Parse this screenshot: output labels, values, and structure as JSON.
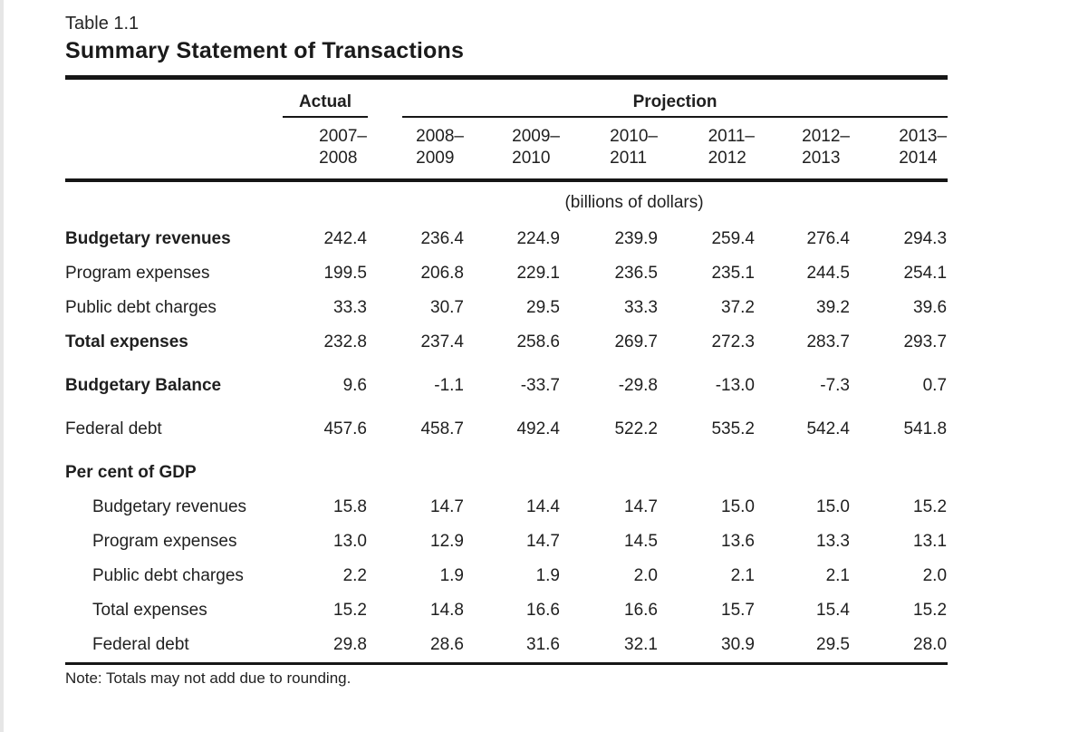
{
  "page": {
    "table_number": "Table 1.1",
    "title": "Summary Statement of Transactions",
    "units_note": "(billions of dollars)",
    "footnote": "Note: Totals may not add due to rounding."
  },
  "header": {
    "actual_label": "Actual",
    "projection_label": "Projection",
    "year_columns": [
      {
        "line1": "2007–",
        "line2": "2008",
        "group": "actual"
      },
      {
        "line1": "2008–",
        "line2": "2009",
        "group": "projection"
      },
      {
        "line1": "2009–",
        "line2": "2010",
        "group": "projection"
      },
      {
        "line1": "2010–",
        "line2": "2011",
        "group": "projection"
      },
      {
        "line1": "2011–",
        "line2": "2012",
        "group": "projection"
      },
      {
        "line1": "2012–",
        "line2": "2013",
        "group": "projection"
      },
      {
        "line1": "2013–",
        "line2": "2014",
        "group": "projection"
      }
    ]
  },
  "table": {
    "rows": [
      {
        "label": "Budgetary revenues",
        "style": "bold",
        "values": [
          "242.4",
          "236.4",
          "224.9",
          "239.9",
          "259.4",
          "276.4",
          "294.3"
        ]
      },
      {
        "label": "Program expenses",
        "style": "normal",
        "values": [
          "199.5",
          "206.8",
          "229.1",
          "236.5",
          "235.1",
          "244.5",
          "254.1"
        ]
      },
      {
        "label": "Public debt charges",
        "style": "normal",
        "values": [
          "33.3",
          "30.7",
          "29.5",
          "33.3",
          "37.2",
          "39.2",
          "39.6"
        ]
      },
      {
        "label": "Total expenses",
        "style": "bold",
        "values": [
          "232.8",
          "237.4",
          "258.6",
          "269.7",
          "272.3",
          "283.7",
          "293.7"
        ]
      },
      {
        "label": "Budgetary Balance",
        "style": "bold",
        "space_before": true,
        "values": [
          "9.6",
          "-1.1",
          "-33.7",
          "-29.8",
          "-13.0",
          "-7.3",
          "0.7"
        ]
      },
      {
        "label": "Federal debt",
        "style": "normal",
        "space_before": true,
        "values": [
          "457.6",
          "458.7",
          "492.4",
          "522.2",
          "535.2",
          "542.4",
          "541.8"
        ]
      },
      {
        "label": "Per cent of GDP",
        "style": "bold",
        "space_before": true,
        "section": true,
        "values": [
          "",
          "",
          "",
          "",
          "",
          "",
          ""
        ]
      },
      {
        "label": "Budgetary revenues",
        "style": "indent",
        "values": [
          "15.8",
          "14.7",
          "14.4",
          "14.7",
          "15.0",
          "15.0",
          "15.2"
        ]
      },
      {
        "label": "Program expenses",
        "style": "indent",
        "values": [
          "13.0",
          "12.9",
          "14.7",
          "14.5",
          "13.6",
          "13.3",
          "13.1"
        ]
      },
      {
        "label": "Public debt charges",
        "style": "indent",
        "values": [
          "2.2",
          "1.9",
          "1.9",
          "2.0",
          "2.1",
          "2.1",
          "2.0"
        ]
      },
      {
        "label": "Total expenses",
        "style": "indent",
        "values": [
          "15.2",
          "14.8",
          "16.6",
          "16.6",
          "15.7",
          "15.4",
          "15.2"
        ]
      },
      {
        "label": "Federal debt",
        "style": "indent",
        "values": [
          "29.8",
          "28.6",
          "31.6",
          "32.1",
          "30.9",
          "29.5",
          "28.0"
        ]
      }
    ]
  }
}
